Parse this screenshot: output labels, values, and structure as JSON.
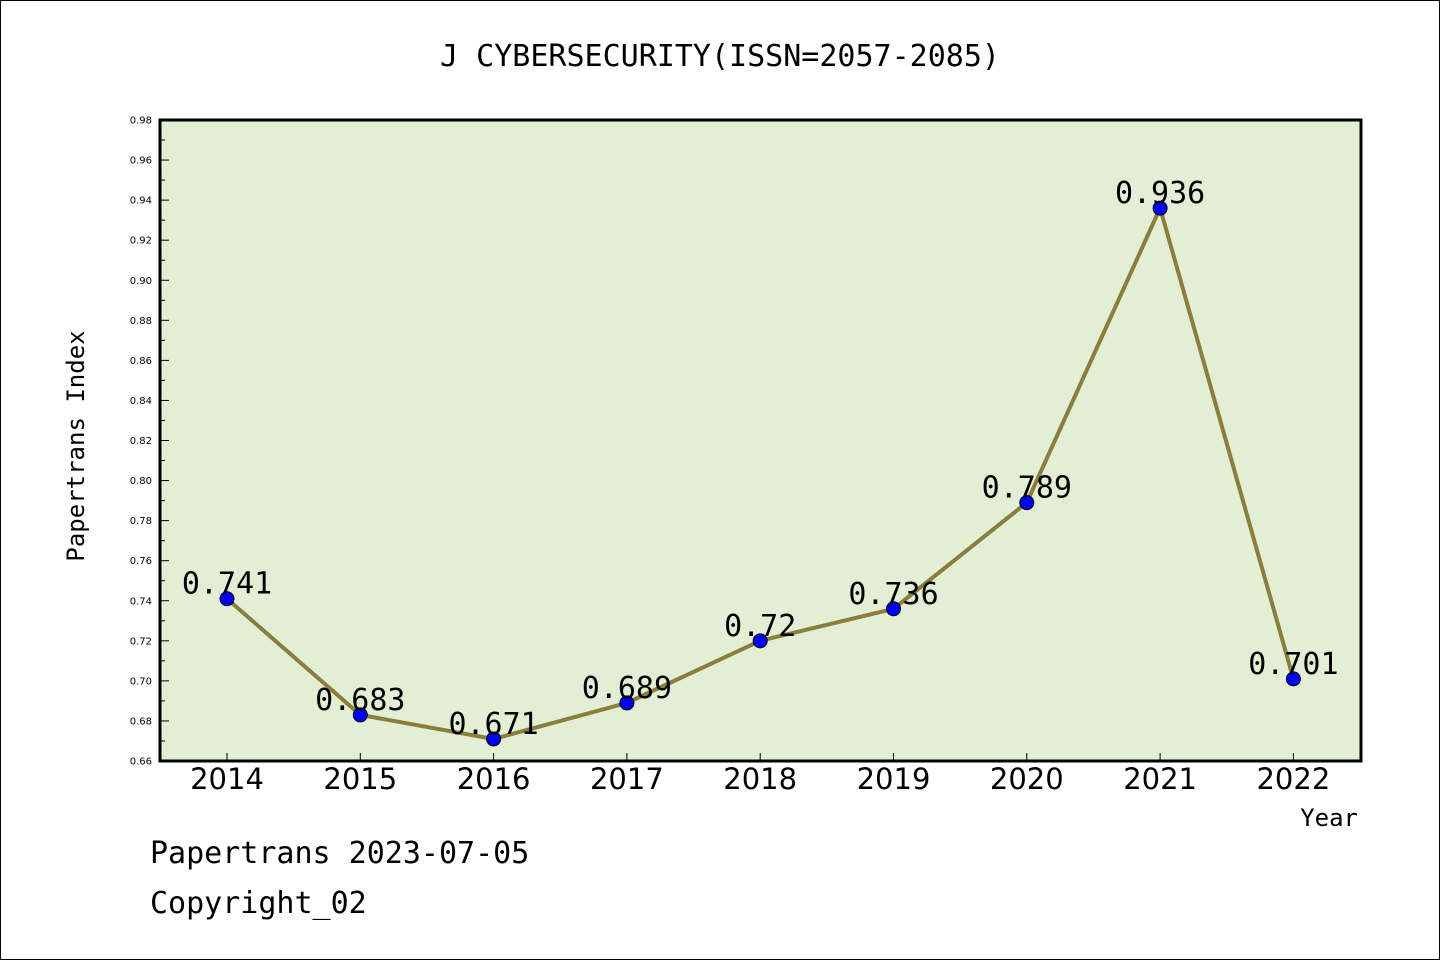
{
  "chart_data": {
    "type": "line",
    "title": "J CYBERSECURITY(ISSN=2057-2085)",
    "xlabel": "Year",
    "ylabel": "Papertrans Index",
    "categories": [
      "2014",
      "2015",
      "2016",
      "2017",
      "2018",
      "2019",
      "2020",
      "2021",
      "2022"
    ],
    "series": [
      {
        "values": [
          0.741,
          0.683,
          0.671,
          0.689,
          0.72,
          0.736,
          0.789,
          0.936,
          0.701
        ]
      }
    ],
    "data_labels": [
      "0.741",
      "0.683",
      "0.671",
      "0.689",
      "0.72",
      "0.736",
      "0.789",
      "0.936",
      "0.701"
    ],
    "ylim": [
      0.66,
      0.98
    ],
    "yticks": [
      "0.66",
      "0.68",
      "0.70",
      "0.72",
      "0.74",
      "0.76",
      "0.78",
      "0.80",
      "0.82",
      "0.84",
      "0.86",
      "0.88",
      "0.90",
      "0.92",
      "0.94",
      "0.96",
      "0.98"
    ],
    "grid": false,
    "colors": {
      "plot_background": "#e2efd4",
      "line": "#8b7d3a",
      "marker": "#0000ff"
    }
  },
  "footer": {
    "line1": "Papertrans 2023-07-05",
    "line2": "Copyright_02"
  }
}
